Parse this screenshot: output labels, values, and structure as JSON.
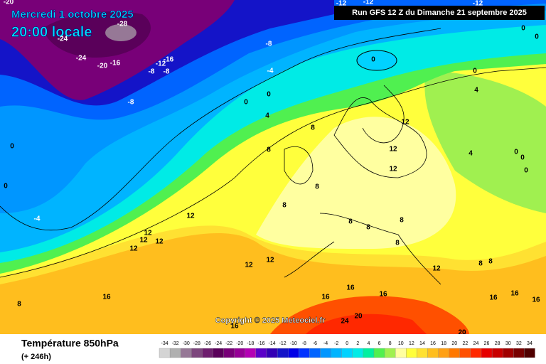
{
  "header": {
    "date": "Mercredi 1 octobre 2025",
    "time": "20:00 locale",
    "run": "Run GFS 12 Z du Dimanche 21 septembre 2025"
  },
  "copyright": "Copyright © 2025 Meteociel.fr",
  "legend": {
    "title": "Température 850hPa",
    "lead_time": "(+ 246h)",
    "scale": [
      {
        "value": -34,
        "color": "#d4d4d4"
      },
      {
        "value": -32,
        "color": "#b0b0b0"
      },
      {
        "value": -30,
        "color": "#967896"
      },
      {
        "value": -28,
        "color": "#7d467d"
      },
      {
        "value": -26,
        "color": "#6e1e6e"
      },
      {
        "value": -24,
        "color": "#5a005a"
      },
      {
        "value": -22,
        "color": "#780078"
      },
      {
        "value": -20,
        "color": "#960096"
      },
      {
        "value": -18,
        "color": "#b400b4"
      },
      {
        "value": -16,
        "color": "#5a00c8"
      },
      {
        "value": -14,
        "color": "#3200b4"
      },
      {
        "value": -12,
        "color": "#1414c8"
      },
      {
        "value": -10,
        "color": "#0000e6"
      },
      {
        "value": -8,
        "color": "#0032ff"
      },
      {
        "value": -6,
        "color": "#0064ff"
      },
      {
        "value": -4,
        "color": "#0096ff"
      },
      {
        "value": -2,
        "color": "#00b4ff"
      },
      {
        "value": 0,
        "color": "#00d2ff"
      },
      {
        "value": 2,
        "color": "#00ebe6"
      },
      {
        "value": 4,
        "color": "#00f0a0"
      },
      {
        "value": 6,
        "color": "#50f050"
      },
      {
        "value": 8,
        "color": "#a0f050"
      },
      {
        "value": 10,
        "color": "#ffffa0"
      },
      {
        "value": 12,
        "color": "#ffff3c"
      },
      {
        "value": 14,
        "color": "#ffe132"
      },
      {
        "value": 16,
        "color": "#ffbe1e"
      },
      {
        "value": 18,
        "color": "#ffa014"
      },
      {
        "value": 20,
        "color": "#ff7800"
      },
      {
        "value": 22,
        "color": "#ff5000"
      },
      {
        "value": 24,
        "color": "#ff2800"
      },
      {
        "value": 26,
        "color": "#e60000"
      },
      {
        "value": 28,
        "color": "#c80000"
      },
      {
        "value": 30,
        "color": "#a00000"
      },
      {
        "value": 32,
        "color": "#780000"
      },
      {
        "value": 34,
        "color": "#500000"
      }
    ]
  },
  "contour_labels": [
    -20,
    -28,
    -24,
    -24,
    -20,
    -16,
    -16,
    -12,
    -8,
    -8,
    -8,
    -4,
    -8,
    0,
    0,
    4,
    0,
    -12,
    -12,
    -12,
    0,
    0,
    0,
    4,
    8,
    12,
    12,
    12,
    8,
    4,
    0,
    0,
    0,
    0,
    0,
    -4,
    12,
    12,
    12,
    12,
    12,
    8,
    8,
    8,
    8,
    8,
    8,
    12,
    12,
    12,
    8,
    8,
    16,
    8,
    16,
    16,
    16,
    20,
    24,
    16,
    20,
    16,
    16,
    16
  ]
}
